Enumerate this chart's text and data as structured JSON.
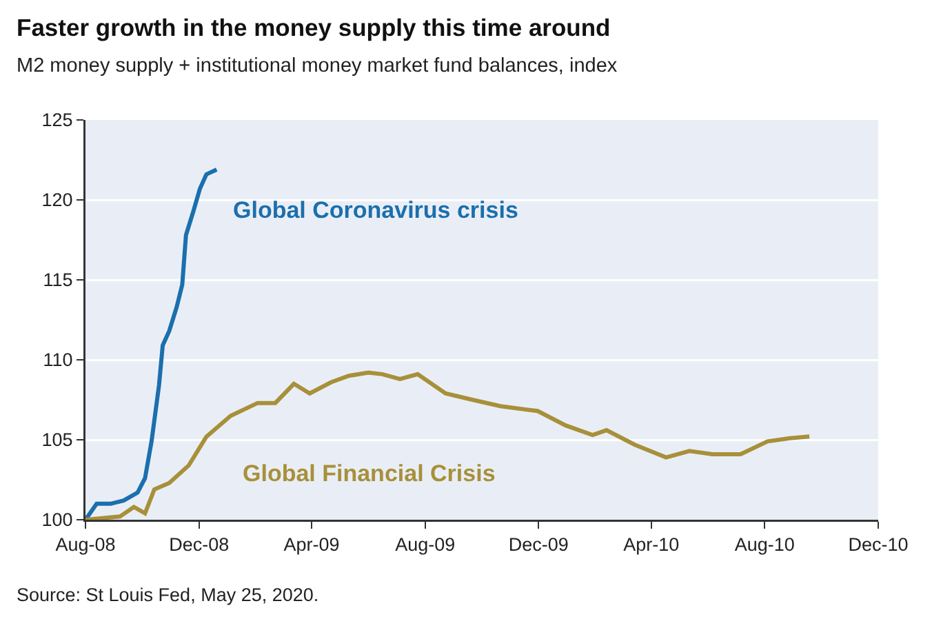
{
  "chart_data": {
    "type": "line",
    "title": "Faster growth in the money supply this time around",
    "subtitle": "M2 money supply + institutional money market fund balances, index",
    "series": [
      {
        "name": "Global Coronavirus crisis",
        "color": "#1b6fad",
        "x": [
          "2008-08-01",
          "2008-08-13",
          "2008-08-28",
          "2008-09-11",
          "2008-09-26",
          "2008-10-04",
          "2008-10-11",
          "2008-10-19",
          "2008-10-23",
          "2008-10-30",
          "2008-11-07",
          "2008-11-13",
          "2008-11-17",
          "2008-11-25",
          "2008-12-02",
          "2008-12-09",
          "2008-12-20"
        ],
        "values": [
          100,
          101,
          101,
          101.2,
          101.7,
          102.6,
          104.9,
          108.4,
          110.9,
          111.8,
          113.3,
          114.7,
          117.8,
          119.3,
          120.7,
          121.6,
          121.9
        ]
      },
      {
        "name": "Global Financial Crisis",
        "color": "#a8903a",
        "x": [
          "2008-08-01",
          "2008-09-07",
          "2008-09-22",
          "2008-10-04",
          "2008-10-14",
          "2008-10-30",
          "2008-11-20",
          "2008-12-09",
          "2009-01-04",
          "2009-02-02",
          "2009-02-21",
          "2009-03-13",
          "2009-03-30",
          "2009-04-22",
          "2009-05-11",
          "2009-06-01",
          "2009-06-16",
          "2009-07-05",
          "2009-07-24",
          "2009-08-23",
          "2009-09-21",
          "2009-10-21",
          "2009-11-30",
          "2009-12-30",
          "2010-01-28",
          "2010-02-12",
          "2010-03-14",
          "2010-04-17",
          "2010-05-12",
          "2010-06-06",
          "2010-07-06",
          "2010-08-04",
          "2010-08-28",
          "2010-09-18"
        ],
        "values": [
          100,
          100.2,
          100.8,
          100.4,
          101.9,
          102.3,
          103.4,
          105.2,
          106.5,
          107.3,
          107.3,
          108.5,
          107.9,
          108.6,
          109,
          109.2,
          109.1,
          108.8,
          109.1,
          107.9,
          107.5,
          107.1,
          106.8,
          105.9,
          105.3,
          105.6,
          104.7,
          103.9,
          104.3,
          104.1,
          104.1,
          104.9,
          105.1,
          105.2
        ]
      }
    ],
    "xlim": [
      "2008-08-01",
      "2010-12-01"
    ],
    "xticks": [
      {
        "value": "2008-08-01",
        "label": "Aug-08"
      },
      {
        "value": "2008-12-01",
        "label": "Dec-08"
      },
      {
        "value": "2009-04-01",
        "label": "Apr-09"
      },
      {
        "value": "2009-08-01",
        "label": "Aug-09"
      },
      {
        "value": "2009-12-01",
        "label": "Dec-09"
      },
      {
        "value": "2010-04-01",
        "label": "Apr-10"
      },
      {
        "value": "2010-08-01",
        "label": "Aug-10"
      },
      {
        "value": "2010-12-01",
        "label": "Dec-10"
      }
    ],
    "ylim": [
      100,
      125
    ],
    "yticks": [
      100,
      105,
      110,
      115,
      120,
      125
    ],
    "grid": "y",
    "legend": false,
    "marker": "none",
    "line_style": "solid",
    "annotations": [
      "Source: St Louis Fed, May 25, 2020."
    ]
  }
}
